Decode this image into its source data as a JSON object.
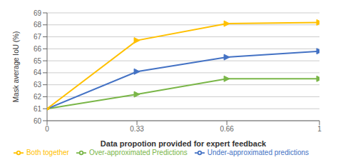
{
  "chart_data": {
    "type": "line",
    "x": [
      0,
      0.33,
      0.66,
      1
    ],
    "series": [
      {
        "name": "Over-approximated Predictions",
        "color": "#7ab648",
        "marker": "triangle_right",
        "values": [
          61.0,
          62.2,
          63.5,
          63.5
        ]
      },
      {
        "name": "Under-approximated predictions",
        "color": "#4472c4",
        "marker": "triangle_right",
        "values": [
          61.0,
          64.1,
          65.3,
          65.8
        ]
      },
      {
        "name": "Both together",
        "color": "#ffc000",
        "marker": "triangle_right",
        "values": [
          61.0,
          66.7,
          68.1,
          68.2
        ]
      }
    ],
    "x_label": "Data propotion provided for expert feedback",
    "y_label": "Mask average IoU (%)",
    "xlim": [
      0,
      1
    ],
    "xticks": [
      0,
      0.33,
      0.66,
      1
    ],
    "ylim": [
      60,
      69
    ],
    "yticks": [
      60,
      61,
      62,
      63,
      64,
      65,
      66,
      67,
      68,
      69
    ],
    "grid": "y",
    "legend": "bottom"
  }
}
